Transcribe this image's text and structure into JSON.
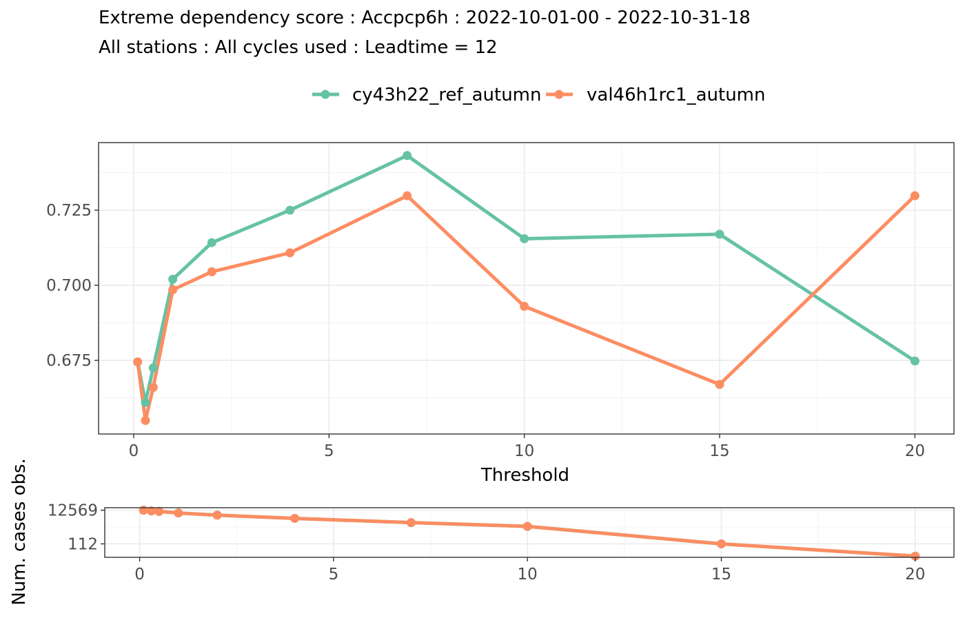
{
  "title_line1": "Extreme dependency score : Accpcp6h : 2022-10-01-00 - 2022-10-31-18",
  "title_line2": "All stations : All cycles used : Leadtime = 12",
  "colors": {
    "series1": "#66c2a5",
    "series2": "#fc8d62",
    "grid": "#ebebeb",
    "border": "#333333"
  },
  "chart_data": [
    {
      "type": "line",
      "title": "",
      "xlabel": "Threshold",
      "ylabel": "",
      "xlim": [
        -0.9,
        21
      ],
      "ylim": [
        0.6505,
        0.7475
      ],
      "x_ticks": [
        0,
        5,
        10,
        15,
        20
      ],
      "x_tick_labels": [
        "0",
        "5",
        "10",
        "15",
        "20"
      ],
      "y_ticks": [
        0.675,
        0.7,
        0.725
      ],
      "y_tick_labels": [
        "0.675",
        "0.700",
        "0.725"
      ],
      "grid": true,
      "legend_position": "top",
      "x": [
        0.1,
        0.3,
        0.5,
        1,
        2,
        4,
        7,
        10,
        15,
        20
      ],
      "series": [
        {
          "name": "cy43h22_ref_autumn",
          "values": [
            0.6745,
            0.661,
            0.6725,
            0.702,
            0.7142,
            0.725,
            0.7432,
            0.7155,
            0.717,
            0.6748
          ]
        },
        {
          "name": "val46h1rc1_autumn",
          "values": [
            0.6745,
            0.655,
            0.666,
            0.6985,
            0.7045,
            0.7108,
            0.7298,
            0.693,
            0.667,
            0.7298
          ]
        }
      ]
    },
    {
      "type": "line",
      "title": "",
      "xlabel": "",
      "ylabel": "Num. cases obs.",
      "xlim": [
        -0.9,
        21
      ],
      "y_scale": "log",
      "ylim": [
        17,
        17800
      ],
      "x_ticks": [
        0,
        5,
        10,
        15,
        20
      ],
      "x_tick_labels": [
        "0",
        "5",
        "10",
        "15",
        "20"
      ],
      "y_ticks": [
        112,
        12569
      ],
      "y_tick_labels": [
        "112",
        "12569"
      ],
      "grid": true,
      "x": [
        0.1,
        0.3,
        0.5,
        1,
        2,
        4,
        7,
        10,
        15,
        20
      ],
      "series": [
        {
          "name": "cy43h22_ref_autumn",
          "values": [
            12569,
            11300,
            10600,
            8500,
            6300,
            4000,
            2200,
            1300,
            112,
            20
          ]
        },
        {
          "name": "val46h1rc1_autumn",
          "values": [
            12569,
            11300,
            10600,
            8500,
            6300,
            4000,
            2200,
            1300,
            112,
            20
          ]
        }
      ]
    }
  ]
}
